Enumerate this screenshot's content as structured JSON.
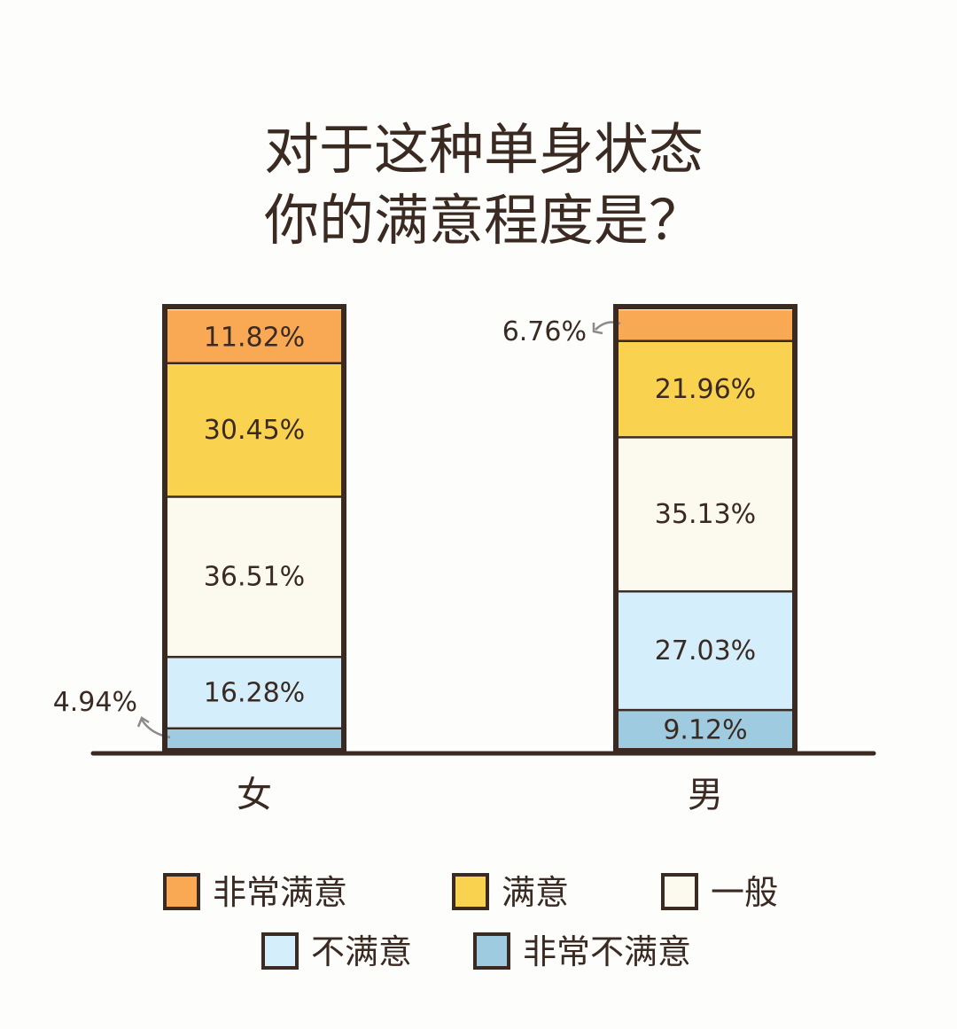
{
  "chart_data": {
    "type": "bar",
    "stacked": true,
    "title_lines": [
      "对于这种单身状态",
      "你的满意程度是？"
    ],
    "categories": [
      "女",
      "男"
    ],
    "series": [
      {
        "name": "非常不满意",
        "color": "#9ecbe0",
        "values": [
          4.94,
          9.12
        ],
        "labels": [
          "4.94%",
          "9.12%"
        ]
      },
      {
        "name": "不满意",
        "color": "#d4eefb",
        "values": [
          16.28,
          27.03
        ],
        "labels": [
          "16.28%",
          "27.03%"
        ]
      },
      {
        "name": "一般",
        "color": "#fcf9ee",
        "values": [
          36.51,
          35.13
        ],
        "labels": [
          "36.51%",
          "35.13%"
        ]
      },
      {
        "name": "满意",
        "color": "#f9d24f",
        "values": [
          30.45,
          21.96
        ],
        "labels": [
          "30.45%",
          "21.96%"
        ]
      },
      {
        "name": "非常满意",
        "color": "#f9a953",
        "values": [
          11.82,
          6.76
        ],
        "labels": [
          "11.82%",
          "6.76%"
        ]
      }
    ],
    "legend_order": [
      "非常满意",
      "满意",
      "一般",
      "不满意",
      "非常不满意"
    ],
    "ylim": [
      0,
      100
    ],
    "grid": false,
    "legend_position": "bottom"
  }
}
